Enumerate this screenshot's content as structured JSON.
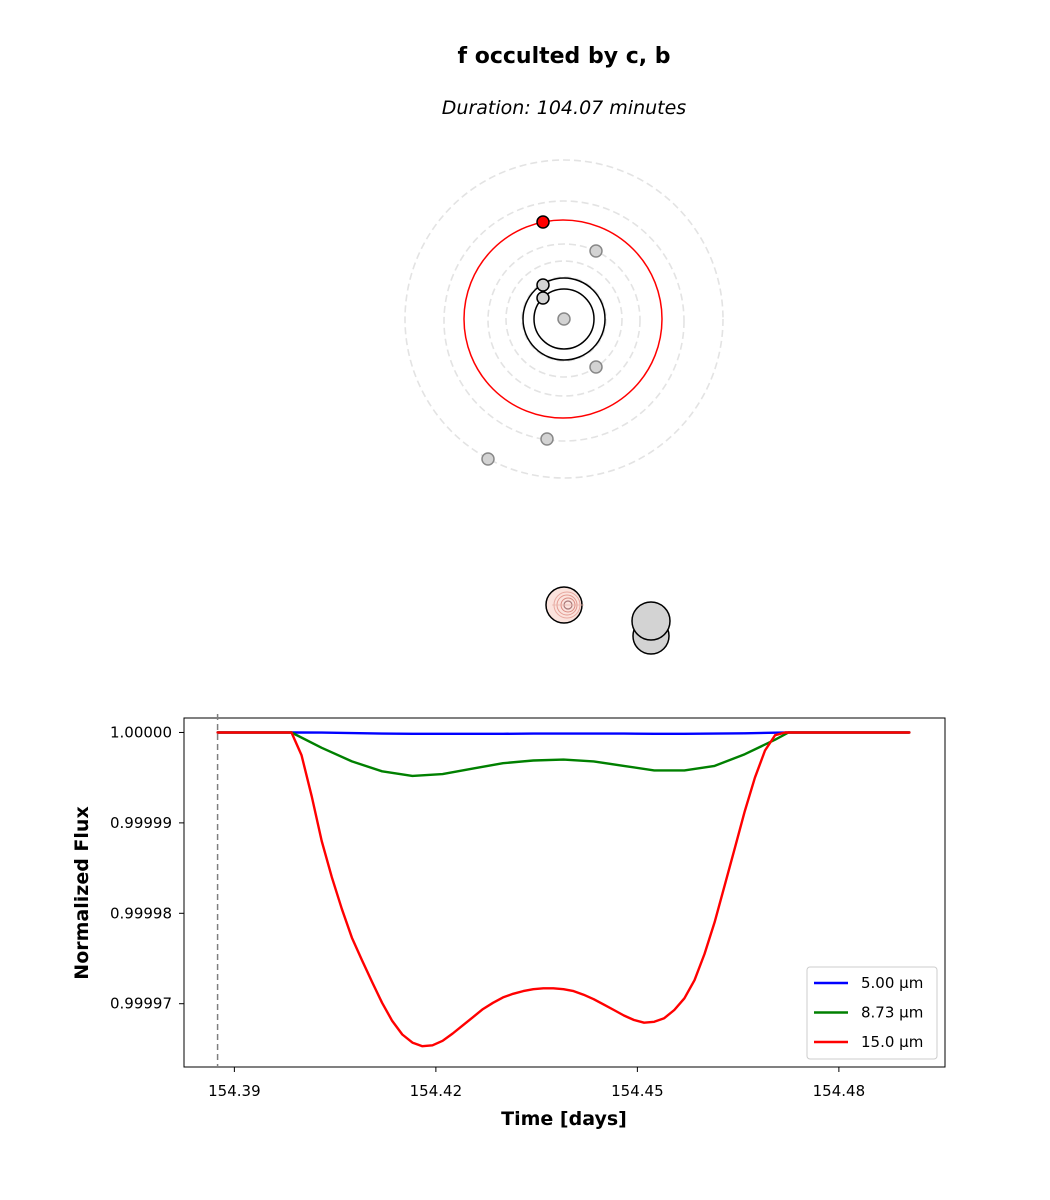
{
  "title": "f occulted by c, b",
  "subtitle": "Duration: 104.07 minutes",
  "orbit_view": {
    "highlight_color": "#ff0000",
    "planet_fill": "#d3d3d3"
  },
  "chart_data": {
    "type": "line",
    "xlabel": "Time [days]",
    "ylabel": "Normalized Flux",
    "x_ticks": [
      154.39,
      154.42,
      154.45,
      154.48
    ],
    "x_tick_labels": [
      "154.39",
      "154.42",
      "154.45",
      "154.48"
    ],
    "y_ticks": [
      0.99997,
      0.99998,
      0.99999,
      1.0
    ],
    "y_tick_labels": [
      "0.99997",
      "0.99998",
      "0.99999",
      "1.00000"
    ],
    "xlim": [
      154.3825,
      154.4958
    ],
    "ylim": [
      0.999963,
      1.0000016
    ],
    "event_start_marker": 154.3875,
    "legend_position": "lower right",
    "series": [
      {
        "name": "5.00 μm",
        "color": "#0000ff",
        "x": [
          154.3875,
          154.3985,
          154.403,
          154.4075,
          154.412,
          154.4165,
          154.421,
          154.4255,
          154.43,
          154.4345,
          154.439,
          154.4435,
          154.448,
          154.4525,
          154.457,
          154.4615,
          154.466,
          154.4705,
          154.4725,
          154.4905
        ],
        "y": [
          1.0,
          1.0,
          0.99999998,
          0.99999993,
          0.99999988,
          0.99999985,
          0.99999985,
          0.99999985,
          0.99999985,
          0.99999987,
          0.99999987,
          0.99999987,
          0.99999987,
          0.99999985,
          0.99999985,
          0.99999987,
          0.99999991,
          0.99999997,
          1.0,
          1.0
        ]
      },
      {
        "name": "8.73 μm",
        "color": "#008000",
        "x": [
          154.3875,
          154.3985,
          154.403,
          154.4075,
          154.412,
          154.4165,
          154.421,
          154.4255,
          154.43,
          154.4345,
          154.439,
          154.4435,
          154.448,
          154.4525,
          154.457,
          154.4615,
          154.466,
          154.4705,
          154.4725,
          154.4905
        ],
        "y": [
          1.0,
          1.0,
          0.9999983,
          0.9999968,
          0.9999957,
          0.9999952,
          0.9999954,
          0.999996,
          0.9999966,
          0.9999969,
          0.999997,
          0.9999968,
          0.9999963,
          0.9999958,
          0.9999958,
          0.9999963,
          0.9999976,
          0.9999992,
          1.0,
          1.0
        ]
      },
      {
        "name": "15.0 μm",
        "color": "#ff0000",
        "x": [
          154.3875,
          154.3985,
          154.4,
          154.4015,
          154.403,
          154.4045,
          154.406,
          154.4075,
          154.409,
          154.4105,
          154.412,
          154.4135,
          154.415,
          154.4165,
          154.418,
          154.4195,
          154.421,
          154.4225,
          154.424,
          154.4255,
          154.427,
          154.4285,
          154.43,
          154.4315,
          154.433,
          154.4345,
          154.436,
          154.4375,
          154.439,
          154.4405,
          154.442,
          154.4435,
          154.445,
          154.4465,
          154.448,
          154.4495,
          154.451,
          154.4525,
          154.454,
          154.4555,
          154.457,
          154.4585,
          154.46,
          154.4615,
          154.463,
          154.4645,
          154.466,
          154.4675,
          154.469,
          154.4705,
          154.472,
          154.4725,
          154.4905
        ],
        "y": [
          1.0,
          1.0,
          0.9999975,
          0.999993,
          0.999988,
          0.999984,
          0.9999805,
          0.9999773,
          0.9999748,
          0.9999724,
          0.9999701,
          0.9999681,
          0.9999666,
          0.9999657,
          0.9999653,
          0.9999654,
          0.9999659,
          0.9999667,
          0.9999676,
          0.9999685,
          0.9999694,
          0.9999701,
          0.9999707,
          0.9999711,
          0.9999714,
          0.9999716,
          0.9999717,
          0.9999717,
          0.9999716,
          0.9999714,
          0.999971,
          0.9999705,
          0.9999699,
          0.9999693,
          0.9999687,
          0.9999682,
          0.9999679,
          0.999968,
          0.9999684,
          0.9999693,
          0.9999706,
          0.9999726,
          0.9999755,
          0.999979,
          0.9999831,
          0.9999872,
          0.9999913,
          0.999995,
          0.999998,
          0.9999997,
          1.0,
          1.0,
          1.0
        ]
      }
    ]
  }
}
